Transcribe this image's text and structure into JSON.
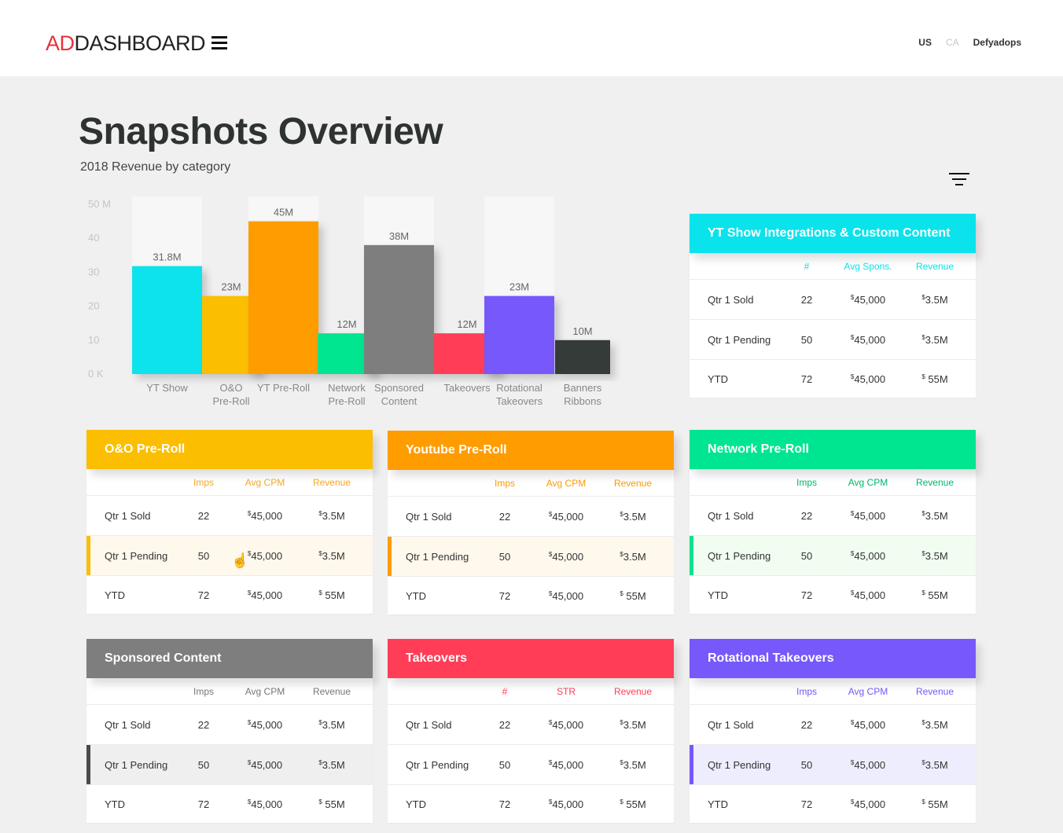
{
  "header": {
    "logo_ad": "AD",
    "logo_dash": "DASHBOARD",
    "menu_icon": "hamburger-icon",
    "nav": {
      "us": "US",
      "ca": "CA",
      "user": "Defyadops"
    }
  },
  "page": {
    "title": "Snapshots Overview",
    "subtitle": "2018 Revenue by category",
    "filter_icon": "filter-icon"
  },
  "chart_data": {
    "type": "bar",
    "categories": [
      [
        "YT Show"
      ],
      [
        "O&O",
        "Pre-Roll"
      ],
      [
        "YT Pre-Roll"
      ],
      [
        "Network",
        "Pre-Roll"
      ],
      [
        "Sponsored",
        "Content"
      ],
      [
        "Takeovers"
      ],
      [
        "Rotational",
        "Takeovers"
      ],
      [
        "Banners",
        "Ribbons"
      ]
    ],
    "values": [
      31.8,
      23,
      45,
      12,
      38,
      12,
      23,
      10
    ],
    "labels": [
      "31.8M",
      "23M",
      "45M",
      "12M",
      "38M",
      "12M",
      "23M",
      "10M"
    ],
    "colors": [
      "#0ae3ec",
      "#fbbe00",
      "#ff9c00",
      "#00e58f",
      "#7e7e7e",
      "#ff3d57",
      "#7658fb",
      "#363a39"
    ],
    "yticks": [
      "50 M",
      "40",
      "30",
      "20",
      "10",
      "0 K"
    ],
    "ylim": [
      0,
      50
    ],
    "background_columns": [
      0,
      2,
      4,
      6
    ]
  },
  "cards": [
    {
      "title": "YT Show Integrations & Custom Content",
      "color": "#0ae3ec",
      "header_color": "#0ae3ec",
      "cols": [
        "#",
        "Avg Spons.",
        "Revenue"
      ],
      "rows": [
        {
          "label": "Qtr 1 Sold",
          "count": "22",
          "avg": "45,000",
          "rev": "3.5M",
          "highlight": false
        },
        {
          "label": "Qtr 1 Pending",
          "count": "50",
          "avg": "45,000",
          "rev": "3.5M",
          "highlight": false
        },
        {
          "label": "YTD",
          "count": "72",
          "avg": "45,000",
          "rev": " 55M",
          "highlight": false
        }
      ]
    },
    {
      "title": "O&O Pre-Roll",
      "color": "#fbbe00",
      "header_color": "#f9a825",
      "cols": [
        "Imps",
        "Avg CPM",
        "Revenue"
      ],
      "rows": [
        {
          "label": "Qtr 1 Sold",
          "count": "22",
          "avg": "45,000",
          "rev": "3.5M",
          "highlight": false
        },
        {
          "label": "Qtr 1 Pending",
          "count": "50",
          "avg": "45,000",
          "rev": "3.5M",
          "highlight": true,
          "bg": "#fff8ec"
        },
        {
          "label": "YTD",
          "count": "72",
          "avg": "45,000",
          "rev": " 55M",
          "highlight": false
        }
      ]
    },
    {
      "title": "Youtube Pre-Roll",
      "color": "#ff9c00",
      "header_color": "#ff9c00",
      "cols": [
        "Imps",
        "Avg CPM",
        "Revenue"
      ],
      "rows": [
        {
          "label": "Qtr 1 Sold",
          "count": "22",
          "avg": "45,000",
          "rev": "3.5M",
          "highlight": false
        },
        {
          "label": "Qtr 1 Pending",
          "count": "50",
          "avg": "45,000",
          "rev": "3.5M",
          "highlight": true,
          "bg": "#fff8ec"
        },
        {
          "label": "YTD",
          "count": "72",
          "avg": "45,000",
          "rev": " 55M",
          "highlight": false
        }
      ]
    },
    {
      "title": "Network Pre-Roll",
      "color": "#00e58f",
      "header_color": "#00b870",
      "cols": [
        "Imps",
        "Avg CPM",
        "Revenue"
      ],
      "rows": [
        {
          "label": "Qtr 1 Sold",
          "count": "22",
          "avg": "45,000",
          "rev": "3.5M",
          "highlight": false
        },
        {
          "label": "Qtr 1 Pending",
          "count": "50",
          "avg": "45,000",
          "rev": "3.5M",
          "highlight": true,
          "bg": "#f1fdf1"
        },
        {
          "label": "YTD",
          "count": "72",
          "avg": "45,000",
          "rev": " 55M",
          "highlight": false
        }
      ]
    },
    {
      "title": "Sponsored Content",
      "color": "#7e7e7e",
      "header_color": "#777777",
      "cols": [
        "Imps",
        "Avg CPM",
        "Revenue"
      ],
      "rows": [
        {
          "label": "Qtr 1 Sold",
          "count": "22",
          "avg": "45,000",
          "rev": "3.5M",
          "highlight": false
        },
        {
          "label": "Qtr 1 Pending",
          "count": "50",
          "avg": "45,000",
          "rev": "3.5M",
          "highlight": true,
          "bg": "#efefef",
          "bar": "#4a4a4a"
        },
        {
          "label": "YTD",
          "count": "72",
          "avg": "45,000",
          "rev": " 55M",
          "highlight": false
        }
      ]
    },
    {
      "title": "Takeovers",
      "color": "#ff3d57",
      "header_color": "#ff3d57",
      "cols": [
        "#",
        "STR",
        "Revenue"
      ],
      "rows": [
        {
          "label": "Qtr 1 Sold",
          "count": "22",
          "avg": "45,000",
          "rev": "3.5M",
          "highlight": false
        },
        {
          "label": "Qtr 1 Pending",
          "count": "50",
          "avg": "45,000",
          "rev": "3.5M",
          "highlight": false
        },
        {
          "label": "YTD",
          "count": "72",
          "avg": "45,000",
          "rev": " 55M",
          "highlight": false
        }
      ]
    },
    {
      "title": "Rotational Takeovers",
      "color": "#7658fb",
      "header_color": "#7658fb",
      "cols": [
        "Imps",
        "Avg CPM",
        "Revenue"
      ],
      "rows": [
        {
          "label": "Qtr 1 Sold",
          "count": "22",
          "avg": "45,000",
          "rev": "3.5M",
          "highlight": false
        },
        {
          "label": "Qtr 1 Pending",
          "count": "50",
          "avg": "45,000",
          "rev": "3.5M",
          "highlight": true,
          "bg": "#eeedfd"
        },
        {
          "label": "YTD",
          "count": "72",
          "avg": "45,000",
          "rev": " 55M",
          "highlight": false
        }
      ]
    }
  ],
  "currency_symbol": "$"
}
